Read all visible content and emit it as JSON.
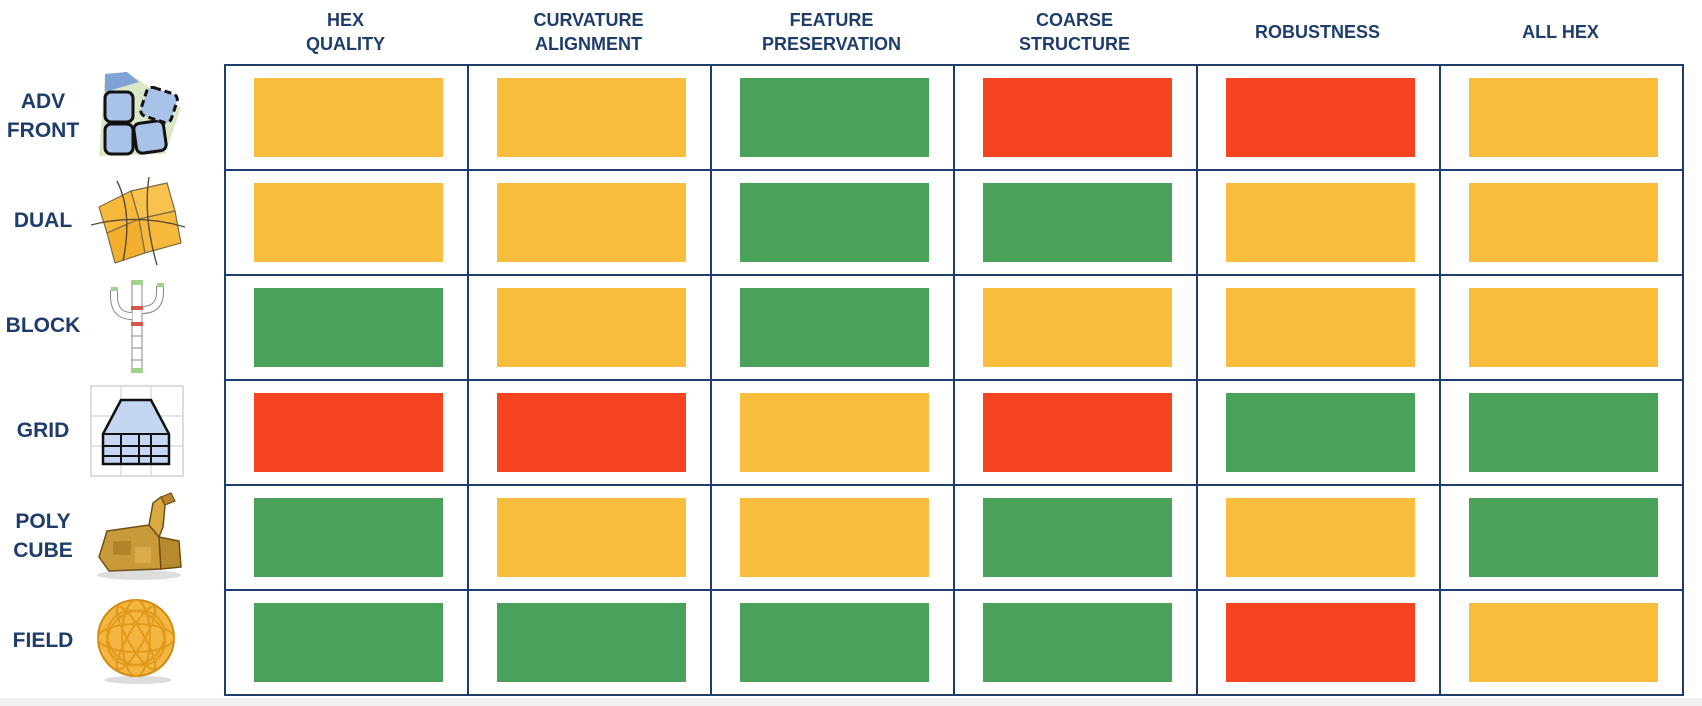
{
  "colors": {
    "green": "#4aa15a",
    "yellow": "#f8bd3c",
    "red": "#f5441f",
    "navy": "#1f3d6b"
  },
  "columns": [
    "HEX\nQUALITY",
    "CURVATURE\nALIGNMENT",
    "FEATURE\nPRESERVATION",
    "COARSE\nSTRUCTURE",
    "ROBUSTNESS",
    "ALL HEX"
  ],
  "rows": [
    {
      "label": "ADV\nFRONT",
      "icon": "advancing-front-quads-icon",
      "ratings": [
        "yellow",
        "yellow",
        "green",
        "red",
        "red",
        "yellow"
      ]
    },
    {
      "label": "DUAL",
      "icon": "dual-sheets-icon",
      "ratings": [
        "yellow",
        "yellow",
        "green",
        "green",
        "yellow",
        "yellow"
      ]
    },
    {
      "label": "BLOCK",
      "icon": "block-cactus-icon",
      "ratings": [
        "green",
        "yellow",
        "green",
        "yellow",
        "yellow",
        "yellow"
      ]
    },
    {
      "label": "GRID",
      "icon": "grid-house-icon",
      "ratings": [
        "red",
        "red",
        "yellow",
        "red",
        "green",
        "green"
      ]
    },
    {
      "label": "POLY\nCUBE",
      "icon": "polycube-bunny-icon",
      "ratings": [
        "green",
        "yellow",
        "yellow",
        "green",
        "yellow",
        "green"
      ]
    },
    {
      "label": "FIELD",
      "icon": "field-ball-icon",
      "ratings": [
        "green",
        "green",
        "green",
        "green",
        "red",
        "yellow"
      ]
    }
  ]
}
